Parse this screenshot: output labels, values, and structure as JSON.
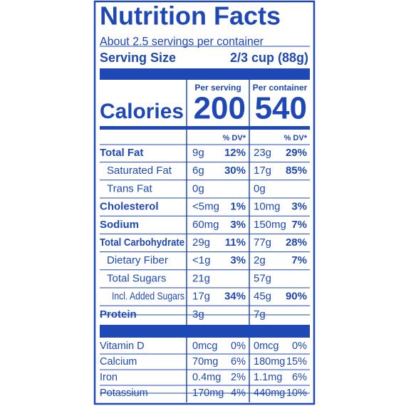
{
  "header": {
    "title": "Nutrition Facts",
    "servings": "About 2.5 servings per container",
    "serving_size_label": "Serving Size",
    "serving_size_value": "2/3 cup (88g)"
  },
  "columns": {
    "per_serving": "Per serving",
    "per_container": "Per container",
    "dv_serving": "% DV*",
    "dv_container": "% DV*"
  },
  "calories": {
    "label": "Calories",
    "per_serving": "200",
    "per_container": "540"
  },
  "nutrients": [
    {
      "name": "Total Fat",
      "serving_amount": "9g",
      "serving_dv": "12%",
      "container_amount": "23g",
      "container_dv": "29%"
    },
    {
      "name": "Saturated Fat",
      "serving_amount": "6g",
      "serving_dv": "30%",
      "container_amount": "17g",
      "container_dv": "85%"
    },
    {
      "name": "Trans Fat",
      "serving_amount": "0g",
      "container_amount": "0g"
    },
    {
      "name": "Cholesterol",
      "serving_amount": "<5mg",
      "serving_dv": "1%",
      "container_amount": "10mg",
      "container_dv": "3%"
    },
    {
      "name": "Sodium",
      "serving_amount": "60mg",
      "serving_dv": "3%",
      "container_amount": "150mg",
      "container_dv": "7%"
    },
    {
      "name": "Total Carbohydrate",
      "serving_amount": "29g",
      "serving_dv": "11%",
      "container_amount": "77g",
      "container_dv": "28%"
    },
    {
      "name": "Dietary Fiber",
      "serving_amount": "<1g",
      "serving_dv": "3%",
      "container_amount": "2g",
      "container_dv": "7%"
    },
    {
      "name": "Total Sugars",
      "serving_amount": "21g",
      "container_amount": "57g"
    },
    {
      "name": "Incl. Added Sugars",
      "serving_amount": "17g",
      "serving_dv": "34%",
      "container_amount": "45g",
      "container_dv": "90%"
    },
    {
      "name": "Protein",
      "serving_amount": "3g",
      "container_amount": "7g"
    }
  ],
  "vitamins": [
    {
      "name": "Vitamin D",
      "serving_amount": "0mcg",
      "serving_dv": "0%",
      "container_amount": "0mcg",
      "container_dv": "0%"
    },
    {
      "name": "Calcium",
      "serving_amount": "70mg",
      "serving_dv": "6%",
      "container_amount": "180mg",
      "container_dv": "15%"
    },
    {
      "name": "Iron",
      "serving_amount": "0.4mg",
      "serving_dv": "2%",
      "container_amount": "1.1mg",
      "container_dv": "6%"
    },
    {
      "name": "Potassium",
      "serving_amount": "170mg",
      "serving_dv": "4%",
      "container_amount": "440mg",
      "container_dv": "10%"
    }
  ]
}
